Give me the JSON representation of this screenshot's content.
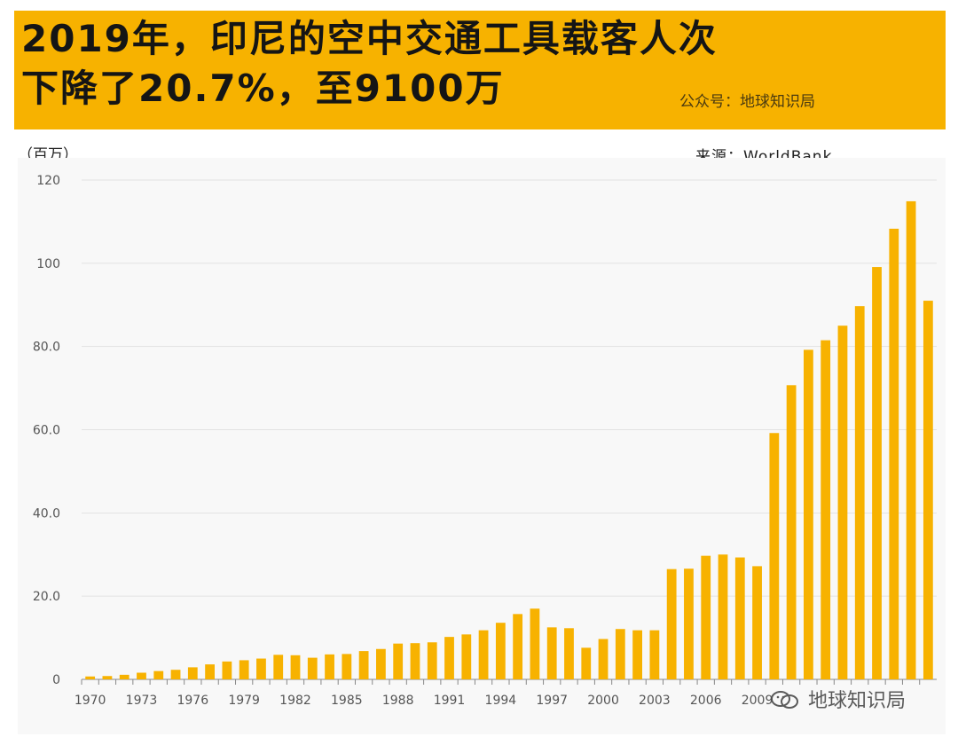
{
  "header": {
    "title_line1": "2019年，印尼的空中交通工具载客人次",
    "title_line2": "下降了20.7%，至9100万",
    "account": "公众号：地球知识局",
    "band_color": "#f7b200"
  },
  "unit_label": "（百万）",
  "source_label": "来源：WorldBank",
  "watermark": {
    "text": "地球知识局",
    "icon": "wechat-icon"
  },
  "chart_data": {
    "type": "bar",
    "categories": [
      "1970",
      "1971",
      "1972",
      "1973",
      "1974",
      "1975",
      "1976",
      "1977",
      "1978",
      "1979",
      "1980",
      "1981",
      "1982",
      "1983",
      "1984",
      "1985",
      "1986",
      "1987",
      "1988",
      "1989",
      "1990",
      "1991",
      "1992",
      "1993",
      "1994",
      "1995",
      "1996",
      "1997",
      "1998",
      "1999",
      "2000",
      "2001",
      "2002",
      "2003",
      "2004",
      "2005",
      "2006",
      "2007",
      "2008",
      "2009",
      "2010",
      "2011",
      "2012",
      "2013",
      "2014",
      "2015",
      "2016",
      "2017",
      "2018",
      "2019"
    ],
    "x_tick_labels": [
      "1970",
      "1973",
      "1976",
      "1979",
      "1982",
      "1985",
      "1988",
      "1991",
      "1994",
      "1997",
      "2000",
      "2003",
      "2006",
      "2009"
    ],
    "values": [
      0.7,
      0.8,
      1.1,
      1.6,
      2.0,
      2.3,
      2.9,
      3.6,
      4.3,
      4.6,
      5.0,
      5.9,
      5.8,
      5.2,
      6.0,
      6.1,
      6.8,
      7.3,
      8.6,
      8.7,
      8.9,
      10.2,
      10.8,
      11.8,
      13.6,
      15.7,
      17.0,
      12.5,
      12.3,
      7.6,
      9.7,
      12.1,
      11.8,
      11.8,
      26.5,
      26.6,
      29.7,
      30.0,
      29.3,
      27.2,
      59.2,
      70.7,
      79.2,
      81.5,
      85.0,
      89.7,
      99.1,
      108.3,
      114.9,
      91.0
    ],
    "y_ticks": [
      {
        "value": 0,
        "label": "0"
      },
      {
        "value": 20,
        "label": "20.0"
      },
      {
        "value": 40,
        "label": "40.0"
      },
      {
        "value": 60,
        "label": "60.0"
      },
      {
        "value": 80,
        "label": "80.0"
      },
      {
        "value": 100,
        "label": "100"
      },
      {
        "value": 120,
        "label": "120"
      }
    ],
    "ylim": [
      0,
      120
    ],
    "grid": true,
    "bar_color": "#f7b200",
    "grid_color": "#e2e2e2",
    "axis_color": "#888888"
  }
}
